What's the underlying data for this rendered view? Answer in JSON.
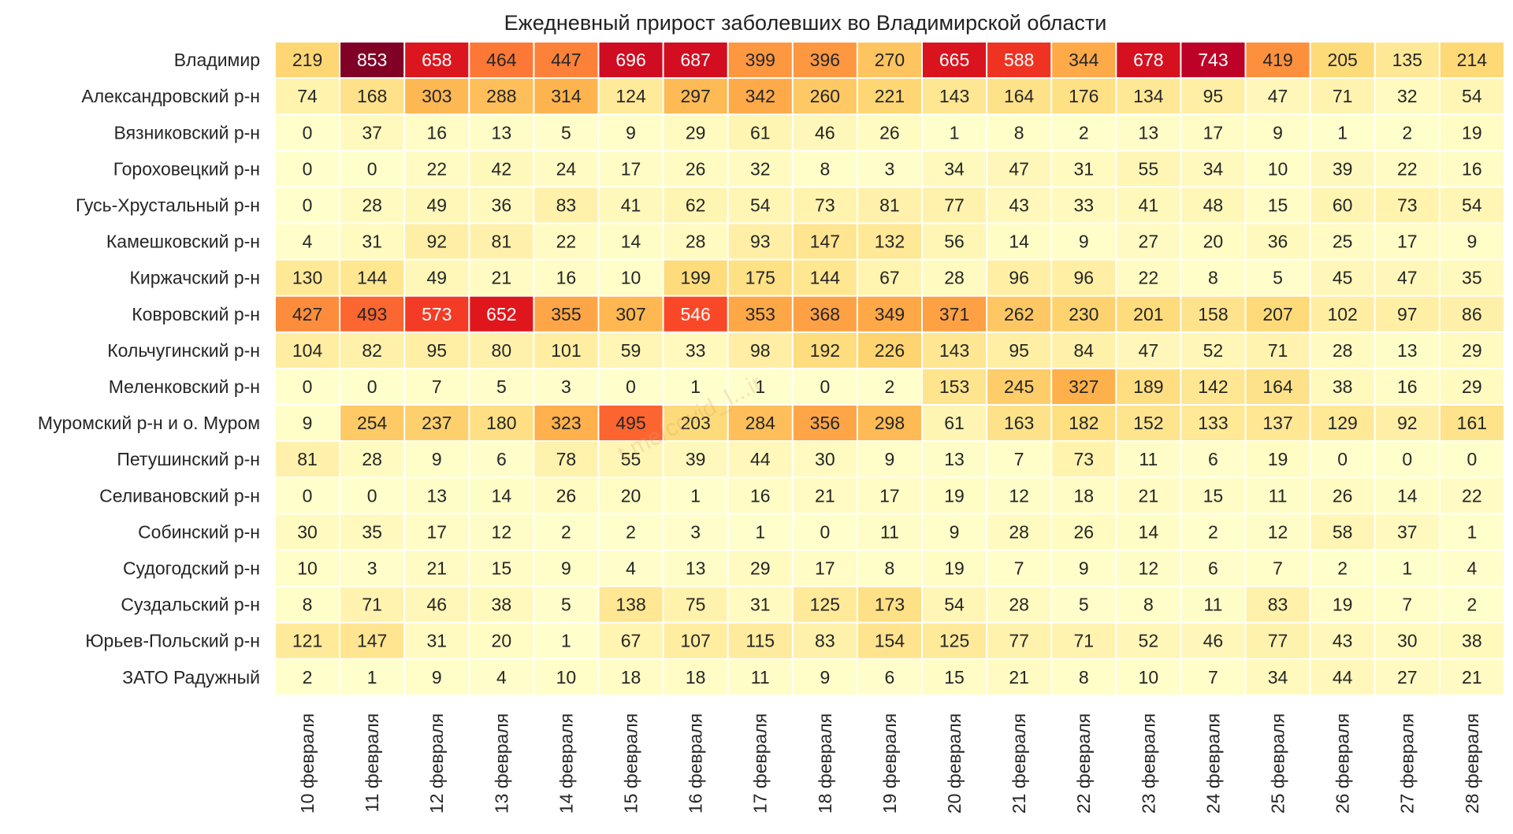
{
  "chart_data": {
    "type": "heatmap",
    "title": "Ежедневный прирост заболевших во Владимирской области",
    "watermark": "t.me/covid_l...ir",
    "colormap": "YlOrRd",
    "vmin": 0,
    "vmax": 853,
    "x": [
      "10 февраля",
      "11 февраля",
      "12 февраля",
      "13 февраля",
      "14 февраля",
      "15 февраля",
      "16 февраля",
      "17 февраля",
      "18 февраля",
      "19 февраля",
      "20 февраля",
      "21 февраля",
      "22 февраля",
      "23 февраля",
      "24 февраля",
      "25 февраля",
      "26 февраля",
      "27 февраля",
      "28 февраля"
    ],
    "y": [
      "Владимир",
      "Александровский р-н",
      "Вязниковский р-н",
      "Гороховецкий р-н",
      "Гусь-Хрустальный р-н",
      "Камешковский р-н",
      "Киржачский р-н",
      "Ковровский р-н",
      "Кольчугинский р-н",
      "Меленковский р-н",
      "Муромский р-н и о. Муром",
      "Петушинский р-н",
      "Селивановский р-н",
      "Собинский р-н",
      "Судогодский р-н",
      "Суздальский р-н",
      "Юрьев-Польский р-н",
      "ЗАТО Радужный"
    ],
    "values": [
      [
        219,
        853,
        658,
        464,
        447,
        696,
        687,
        399,
        396,
        270,
        665,
        588,
        344,
        678,
        743,
        419,
        205,
        135,
        214
      ],
      [
        74,
        168,
        303,
        288,
        314,
        124,
        297,
        342,
        260,
        221,
        143,
        164,
        176,
        134,
        95,
        47,
        71,
        32,
        54
      ],
      [
        0,
        37,
        16,
        13,
        5,
        9,
        29,
        61,
        46,
        26,
        1,
        8,
        2,
        13,
        17,
        9,
        1,
        2,
        19
      ],
      [
        0,
        0,
        22,
        42,
        24,
        17,
        26,
        32,
        8,
        3,
        34,
        47,
        31,
        55,
        34,
        10,
        39,
        22,
        16
      ],
      [
        0,
        28,
        49,
        36,
        83,
        41,
        62,
        54,
        73,
        81,
        77,
        43,
        33,
        41,
        48,
        15,
        60,
        73,
        54
      ],
      [
        4,
        31,
        92,
        81,
        22,
        14,
        28,
        93,
        147,
        132,
        56,
        14,
        9,
        27,
        20,
        36,
        25,
        17,
        9
      ],
      [
        130,
        144,
        49,
        21,
        16,
        10,
        199,
        175,
        144,
        67,
        28,
        96,
        96,
        22,
        8,
        5,
        45,
        47,
        35
      ],
      [
        427,
        493,
        573,
        652,
        355,
        307,
        546,
        353,
        368,
        349,
        371,
        262,
        230,
        201,
        158,
        207,
        102,
        97,
        86
      ],
      [
        104,
        82,
        95,
        80,
        101,
        59,
        33,
        98,
        192,
        226,
        143,
        95,
        84,
        47,
        52,
        71,
        28,
        13,
        29
      ],
      [
        0,
        0,
        7,
        5,
        3,
        0,
        1,
        1,
        0,
        2,
        153,
        245,
        327,
        189,
        142,
        164,
        38,
        16,
        29
      ],
      [
        9,
        254,
        237,
        180,
        323,
        495,
        203,
        284,
        356,
        298,
        61,
        163,
        182,
        152,
        133,
        137,
        129,
        92,
        161
      ],
      [
        81,
        28,
        9,
        6,
        78,
        55,
        39,
        44,
        30,
        9,
        13,
        7,
        73,
        11,
        6,
        19,
        0,
        0,
        0
      ],
      [
        0,
        0,
        13,
        14,
        26,
        20,
        1,
        16,
        21,
        17,
        19,
        12,
        18,
        21,
        15,
        11,
        26,
        14,
        22
      ],
      [
        30,
        35,
        17,
        12,
        2,
        2,
        3,
        1,
        0,
        11,
        9,
        28,
        26,
        14,
        2,
        12,
        58,
        37,
        1
      ],
      [
        10,
        3,
        21,
        15,
        9,
        4,
        13,
        29,
        17,
        8,
        19,
        7,
        9,
        12,
        6,
        7,
        2,
        1,
        4
      ],
      [
        8,
        71,
        46,
        38,
        5,
        138,
        75,
        31,
        125,
        173,
        54,
        28,
        5,
        8,
        11,
        83,
        19,
        7,
        2
      ],
      [
        121,
        147,
        31,
        20,
        1,
        67,
        107,
        115,
        83,
        154,
        125,
        77,
        71,
        52,
        46,
        77,
        43,
        30,
        38
      ],
      [
        2,
        1,
        9,
        4,
        10,
        18,
        18,
        11,
        9,
        6,
        15,
        21,
        8,
        10,
        7,
        34,
        44,
        27,
        21
      ]
    ]
  }
}
